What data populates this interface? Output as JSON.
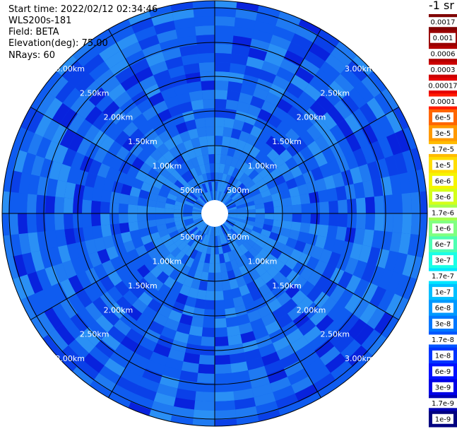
{
  "info": {
    "start_time": "Start time: 2022/02/12 02:34:46",
    "instrument": "WLS200s-181",
    "field": "Field: BETA",
    "elevation": "Elevation(deg): 75.00",
    "nrays": "NRays: 60"
  },
  "colorbar": {
    "unit": "-1 sr",
    "entries": [
      {
        "label": "0.0017",
        "color": "#7f0000"
      },
      {
        "label": "0.001",
        "color": "#990000"
      },
      {
        "label": "0.0006",
        "color": "#b20000"
      },
      {
        "label": "0.0003",
        "color": "#cc0000"
      },
      {
        "label": "0.00017",
        "color": "#e60000"
      },
      {
        "label": "0.0001",
        "color": "#ff1a00"
      },
      {
        "label": "6e-5",
        "color": "#ff6600"
      },
      {
        "label": "3e-5",
        "color": "#ff9900"
      },
      {
        "label": "1.7e-5",
        "color": "#ffbb00"
      },
      {
        "label": "1e-5",
        "color": "#ffdd00"
      },
      {
        "label": "6e-6",
        "color": "#f5f500"
      },
      {
        "label": "3e-6",
        "color": "#d4ff1a"
      },
      {
        "label": "1.7e-6",
        "color": "#a6ff4d"
      },
      {
        "label": "1e-6",
        "color": "#80ff80"
      },
      {
        "label": "6e-7",
        "color": "#4dffb3"
      },
      {
        "label": "3e-7",
        "color": "#1affe6"
      },
      {
        "label": "1.7e-7",
        "color": "#00e6ff"
      },
      {
        "label": "1e-7",
        "color": "#00bfff"
      },
      {
        "label": "6e-8",
        "color": "#0099ff"
      },
      {
        "label": "3e-8",
        "color": "#0077ff"
      },
      {
        "label": "1.7e-8",
        "color": "#0055ff"
      },
      {
        "label": "1e-8",
        "color": "#0033ff"
      },
      {
        "label": "6e-9",
        "color": "#0010ff"
      },
      {
        "label": "3e-9",
        "color": "#0000e6"
      },
      {
        "label": "1.7e-9",
        "color": "#0000b3"
      },
      {
        "label": "1e-9",
        "color": "#000080"
      }
    ]
  },
  "chart_data": {
    "type": "heatmap",
    "projection": "polar",
    "field": "BETA",
    "n_rays": 60,
    "range_rings": [
      "500m",
      "1.00km",
      "1.50km",
      "2.00km",
      "2.50km",
      "3.00km"
    ],
    "range_max_km": 3.0,
    "spokes_deg": [
      0,
      30,
      60,
      90,
      120,
      150,
      180,
      210,
      240,
      270,
      300,
      330
    ],
    "typical_value_range": [
      "1.7e-8",
      "1e-7"
    ],
    "colors": {
      "background_blue": "#0f5cf0",
      "mid_blue": "#1f7af2",
      "light_blue": "#2a90f5",
      "dark_blue": "#0a40e8",
      "deep_blue": "#0822dd"
    }
  }
}
